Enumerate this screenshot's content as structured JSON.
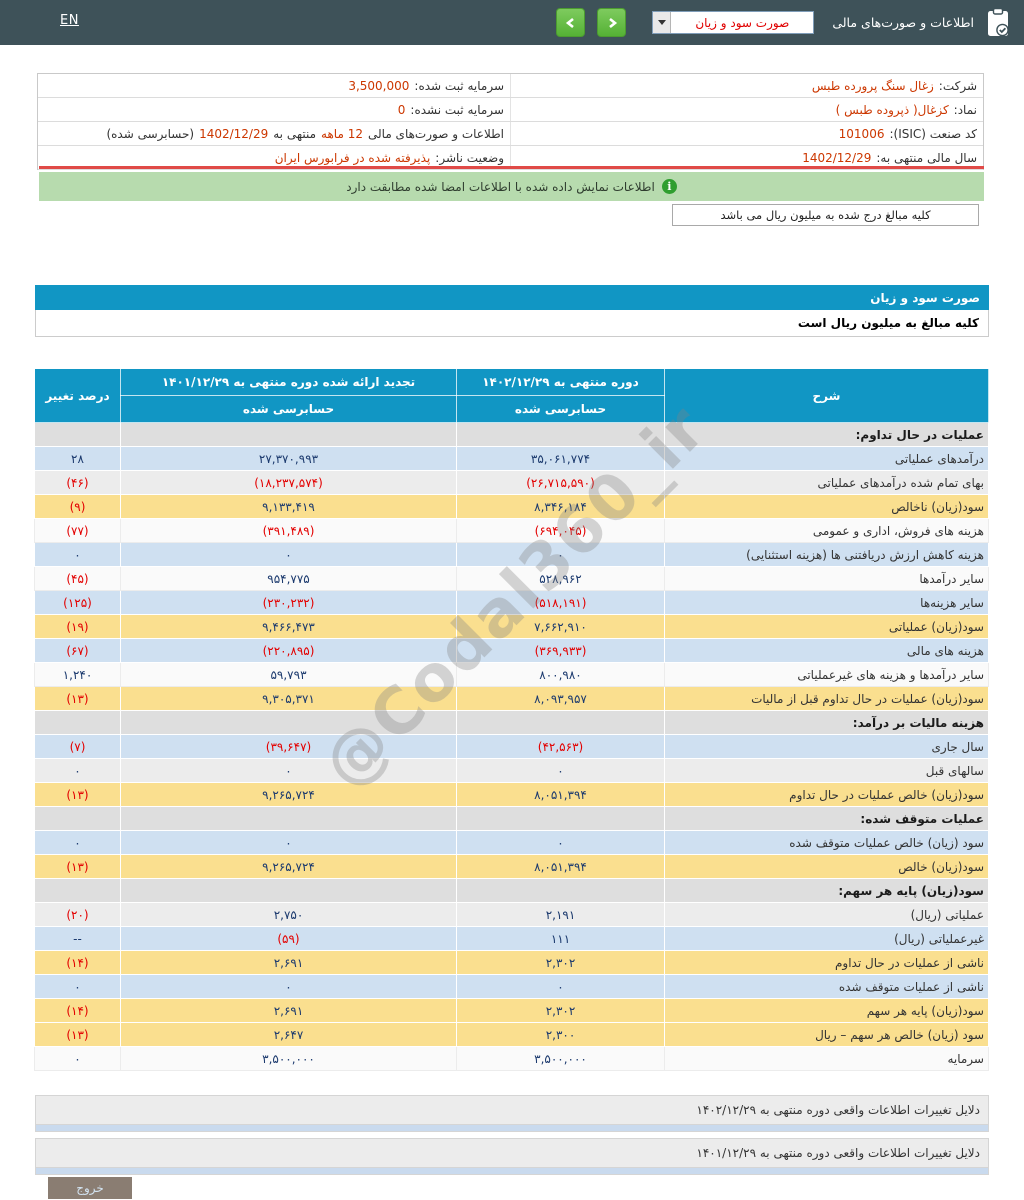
{
  "topbar": {
    "en": "EN",
    "title": "اطلاعات و صورت‌های مالی",
    "dropdown_value": "صورت سود و زیان"
  },
  "company_info": {
    "company_label": "شرکت:",
    "company_value": "زغال سنگ پرورده طبس",
    "symbol_label": "نماد:",
    "symbol_value": "کزغال( ذپروده طبس )",
    "isic_label": "کد صنعت (ISIC):",
    "isic_value": "101006",
    "fiscal_label": "سال مالی منتهی به:",
    "fiscal_value": "1402/12/29",
    "cap_reg_label": "سرمایه ثبت شده:",
    "cap_reg_value": "3,500,000",
    "cap_unreg_label": "سرمایه ثبت نشده:",
    "cap_unreg_value": "0",
    "fin_label": "اطلاعات و صورت‌های مالی",
    "fin_months": "12 ماهه",
    "fin_mid": "منتهی به",
    "fin_date": "1402/12/29",
    "fin_suffix": "(حسابرسی شده)",
    "status_label": "وضعیت ناشر:",
    "status_value": "پذیرفته شده در فرابورس ایران"
  },
  "notice": {
    "icon_glyph": "i",
    "signed_match": "اطلاعات نمایش داده شده با اطلاعات امضا شده مطابقت دارد"
  },
  "amounts_note": "کلیه مبالغ درج شده به میلیون ریال می باشد",
  "income_table": {
    "title": "صورت سود و زیان",
    "unit_note": "کلیه مبالغ به میلیون ریال است",
    "col_desc": "شرح",
    "col_current": "دوره منتهی به ۱۴۰۲/۱۲/۲۹",
    "col_previous": "تجدید ارائه شده دوره منتهی به ۱۴۰۱/۱۲/۲۹",
    "col_audited": "حسابرسی شده",
    "col_pct": "درصد تغییر",
    "rows": [
      {
        "section": "عملیات در حال تداوم:"
      },
      {
        "label": "درآمدهای عملیاتی",
        "cur": "۳۵,۰۶۱,۷۷۴",
        "prev": "۲۷,۳۷۰,۹۹۳",
        "pct": "۲۸",
        "style": "blue"
      },
      {
        "label": "بهای تمام شده درآمدهای عملیاتی",
        "cur": "(۲۶,۷۱۵,۵۹۰)",
        "prev": "(۱۸,۲۳۷,۵۷۴)",
        "pct": "(۴۶)",
        "style": "gray"
      },
      {
        "label": "سود(زیان) ناخالص",
        "cur": "۸,۳۴۶,۱۸۴",
        "prev": "۹,۱۳۳,۴۱۹",
        "pct": "(۹)",
        "style": "yellow"
      },
      {
        "label": "هزینه های فروش، اداری و عمومی",
        "cur": "(۶۹۴,۰۴۵)",
        "prev": "(۳۹۱,۴۸۹)",
        "pct": "(۷۷)",
        "style": "white"
      },
      {
        "label": "هزینه کاهش ارزش دریافتنی ها (هزینه استثنایی)",
        "cur": "۰",
        "prev": "۰",
        "pct": "۰",
        "style": "blue"
      },
      {
        "label": "سایر درآمدها",
        "cur": "۵۲۸,۹۶۲",
        "prev": "۹۵۴,۷۷۵",
        "pct": "(۴۵)",
        "style": "white"
      },
      {
        "label": "سایر هزینه‌ها",
        "cur": "(۵۱۸,۱۹۱)",
        "prev": "(۲۳۰,۲۳۲)",
        "pct": "(۱۲۵)",
        "style": "blue"
      },
      {
        "label": "سود(زیان) عملیاتی",
        "cur": "۷,۶۶۲,۹۱۰",
        "prev": "۹,۴۶۶,۴۷۳",
        "pct": "(۱۹)",
        "style": "yellow"
      },
      {
        "label": "هزینه های مالی",
        "cur": "(۳۶۹,۹۳۳)",
        "prev": "(۲۲۰,۸۹۵)",
        "pct": "(۶۷)",
        "style": "blue"
      },
      {
        "label": "سایر درآمدها و هزینه های غیرعملیاتی",
        "cur": "۸۰۰,۹۸۰",
        "prev": "۵۹,۷۹۳",
        "pct": "۱,۲۴۰",
        "style": "white"
      },
      {
        "label": "سود(زیان) عملیات در حال تداوم قبل از مالیات",
        "cur": "۸,۰۹۳,۹۵۷",
        "prev": "۹,۳۰۵,۳۷۱",
        "pct": "(۱۳)",
        "style": "yellow"
      },
      {
        "section": "هزینه مالیات بر درآمد:"
      },
      {
        "label": "سال جاری",
        "cur": "(۴۲,۵۶۳)",
        "prev": "(۳۹,۶۴۷)",
        "pct": "(۷)",
        "style": "blue"
      },
      {
        "label": "سالهای قبل",
        "cur": "۰",
        "prev": "۰",
        "pct": "۰",
        "style": "gray"
      },
      {
        "label": "سود(زیان) خالص عملیات در حال تداوم",
        "cur": "۸,۰۵۱,۳۹۴",
        "prev": "۹,۲۶۵,۷۲۴",
        "pct": "(۱۳)",
        "style": "yellow"
      },
      {
        "section": "عملیات متوقف شده:"
      },
      {
        "label": "سود (زیان) خالص عملیات متوقف شده",
        "cur": "۰",
        "prev": "۰",
        "pct": "۰",
        "style": "blue"
      },
      {
        "label": "سود(زیان) خالص",
        "cur": "۸,۰۵۱,۳۹۴",
        "prev": "۹,۲۶۵,۷۲۴",
        "pct": "(۱۳)",
        "style": "yellow"
      },
      {
        "section": "سود(زیان) پایه هر سهم:"
      },
      {
        "label": "عملیاتی (ریال)",
        "cur": "۲,۱۹۱",
        "prev": "۲,۷۵۰",
        "pct": "(۲۰)",
        "style": "gray"
      },
      {
        "label": "غیرعملیاتی (ریال)",
        "cur": "۱۱۱",
        "prev": "(۵۹)",
        "pct": "--",
        "style": "blue"
      },
      {
        "label": "ناشی از عملیات در حال تداوم",
        "cur": "۲,۳۰۲",
        "prev": "۲,۶۹۱",
        "pct": "(۱۴)",
        "style": "yellow"
      },
      {
        "label": "ناشی از عملیات متوقف شده",
        "cur": "۰",
        "prev": "۰",
        "pct": "۰",
        "style": "blue"
      },
      {
        "label": "سود(زیان) پایه هر سهم",
        "cur": "۲,۳۰۲",
        "prev": "۲,۶۹۱",
        "pct": "(۱۴)",
        "style": "yellow"
      },
      {
        "label": "سود (زیان) خالص هر سهم – ریال",
        "cur": "۲,۳۰۰",
        "prev": "۲,۶۴۷",
        "pct": "(۱۳)",
        "style": "yellow"
      },
      {
        "label": "سرمایه",
        "cur": "۳,۵۰۰,۰۰۰",
        "prev": "۳,۵۰۰,۰۰۰",
        "pct": "۰",
        "style": "white"
      }
    ]
  },
  "watermark": "@Codal360_ir",
  "footer": {
    "reasons_1402": "دلایل تغییرات اطلاعات واقعی دوره منتهی به ۱۴۰۲/۱۲/۲۹",
    "reasons_1401": "دلایل تغییرات اطلاعات واقعی دوره منتهی به ۱۴۰۱/۱۲/۲۹",
    "exit_label": "خروج"
  },
  "colors": {
    "topbar": "#3E5259",
    "accent_teal": "#1196C4",
    "row_yellow": "#fadf8f",
    "row_blue": "#cfe0f1",
    "row_gray": "#ececec",
    "section_gray": "#dedede",
    "value_navy": "#1C3A6E",
    "negative_red": "#e30000",
    "info_value_red": "#cc3700",
    "green_bar": "#b7dbae",
    "green_button": "#55b135",
    "exit_button": "#8a7d72"
  }
}
